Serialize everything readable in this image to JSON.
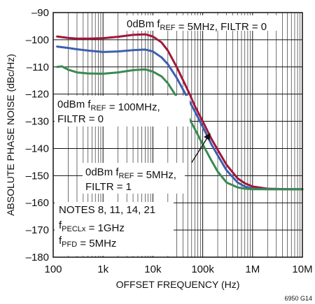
{
  "chart_data": {
    "type": "line",
    "title": "",
    "xlabel": "OFFSET FREQUENCY (Hz)",
    "ylabel": "ABSOLUTE PHASE NOISE (dBc/Hz)",
    "x_scale": "log",
    "xlim": [
      100,
      10000000
    ],
    "ylim": [
      -180,
      -90
    ],
    "grid": true,
    "x_ticks": [
      {
        "value": 100,
        "label": "100"
      },
      {
        "value": 1000,
        "label": "1k"
      },
      {
        "value": 10000,
        "label": "10k"
      },
      {
        "value": 100000,
        "label": "100k"
      },
      {
        "value": 1000000,
        "label": "1M"
      },
      {
        "value": 10000000,
        "label": "10M"
      }
    ],
    "y_ticks": [
      {
        "value": -90,
        "label": "–90"
      },
      {
        "value": -100,
        "label": "–100"
      },
      {
        "value": -110,
        "label": "–110"
      },
      {
        "value": -120,
        "label": "–120"
      },
      {
        "value": -130,
        "label": "–130"
      },
      {
        "value": -140,
        "label": "–140"
      },
      {
        "value": -150,
        "label": "–150"
      },
      {
        "value": -160,
        "label": "–160"
      },
      {
        "value": -170,
        "label": "–170"
      },
      {
        "value": -180,
        "label": "–180"
      }
    ],
    "series": [
      {
        "color": "#a0183a",
        "x": [
          120,
          200,
          300,
          500,
          1000,
          2000,
          4000,
          7000,
          10000,
          15000,
          20000,
          30000,
          50000,
          70000,
          100000,
          150000,
          200000,
          300000,
          500000,
          700000,
          1000000,
          2000000,
          5000000,
          10000000
        ],
        "y": [
          -98.8,
          -99.3,
          -99.6,
          -99.6,
          -99.4,
          -98.9,
          -98.2,
          -98.0,
          -98.8,
          -101,
          -104,
          -110,
          -118.5,
          -124.5,
          -130,
          -136.5,
          -140.5,
          -146,
          -151,
          -152.8,
          -154,
          -154.8,
          -155,
          -155
        ]
      },
      {
        "color": "#3c5fb0",
        "x": [
          120,
          200,
          300,
          500,
          1000,
          2000,
          4000,
          7000,
          10000,
          15000,
          20000,
          30000,
          50000,
          70000,
          100000,
          150000,
          200000,
          300000,
          500000,
          700000,
          1000000,
          2000000,
          5000000,
          10000000
        ],
        "y": [
          -102.5,
          -103,
          -103.5,
          -104,
          -104.5,
          -104.3,
          -103.8,
          -103.6,
          -104.3,
          -106.5,
          -109,
          -114,
          -121.5,
          -126.5,
          -132,
          -138.5,
          -142.5,
          -148,
          -152.5,
          -154,
          -154.8,
          -155,
          -155,
          -155
        ]
      },
      {
        "color": "#3a8a50",
        "x": [
          120,
          150,
          200,
          300,
          500,
          1000,
          2000,
          4000,
          7000,
          10000,
          15000,
          20000,
          30000,
          50000,
          70000,
          100000,
          150000,
          200000,
          300000,
          500000,
          700000,
          1000000,
          2000000,
          5000000,
          10000000
        ],
        "y": [
          -110,
          -109.8,
          -111,
          -112,
          -112.4,
          -112.5,
          -112,
          -111.2,
          -110.9,
          -111.7,
          -113.5,
          -116,
          -121,
          -128,
          -133,
          -138.5,
          -144.5,
          -148.5,
          -152.5,
          -154.3,
          -154.8,
          -155,
          -155,
          -155,
          -155
        ]
      }
    ],
    "annotations": [
      {
        "lines": [
          [
            {
              "t": "0dBm f"
            },
            {
              "t": "REF",
              "sub": true
            },
            {
              "t": " = 5MHz, FILTR = 0"
            }
          ]
        ]
      },
      {
        "lines": [
          [
            {
              "t": "0dBm f"
            },
            {
              "t": "REF",
              "sub": true
            },
            {
              "t": " = 100MHz,"
            }
          ],
          [
            {
              "t": "FILTR = 0"
            }
          ]
        ]
      },
      {
        "lines": [
          [
            {
              "t": "0dBm f"
            },
            {
              "t": "REF",
              "sub": true
            },
            {
              "t": " = 5MHz,"
            }
          ],
          [
            {
              "t": "FILTR = 1"
            }
          ]
        ]
      },
      {
        "lines": [
          [
            {
              "t": "NOTES 8, 11, 14, 21"
            }
          ],
          [
            {
              "t": "f"
            },
            {
              "t": "PECLx",
              "sub": true
            },
            {
              "t": " = 1GHz"
            }
          ],
          [
            {
              "t": "f"
            },
            {
              "t": "PFD",
              "sub": true
            },
            {
              "t": " = 5MHz"
            }
          ]
        ]
      }
    ],
    "figure_code": "6950 G14"
  }
}
